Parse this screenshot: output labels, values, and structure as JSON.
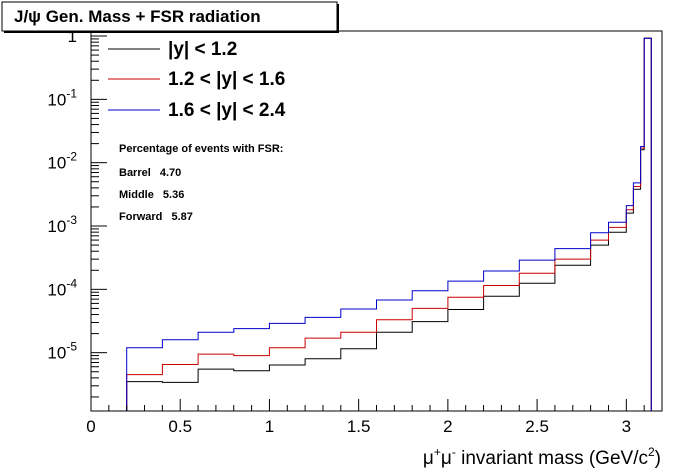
{
  "title": "J/ψ Gen. Mass + FSR radiation",
  "chart_data": {
    "type": "line",
    "title": "J/ψ Gen. Mass + FSR radiation",
    "xlabel": "μ⁺μ⁻ invariant mass (GeV/c²)",
    "xlabel_parts": {
      "mu1": "μ",
      "sup1": "+",
      "mu2": "μ",
      "sup2": "-",
      "rest": " invariant mass (GeV/c",
      "sup3": "2",
      "close": ")"
    },
    "ylabel": "",
    "xlim": [
      0,
      3.2
    ],
    "ylim": [
      1.2e-06,
      1.2
    ],
    "yscale": "log",
    "histogram": true,
    "grid": false,
    "legend_position": "top-left",
    "x_ticks": [
      "0",
      "0.5",
      "1",
      "1.5",
      "2",
      "2.5",
      "3"
    ],
    "y_ticks": [
      {
        "value": 1,
        "base": "1",
        "exp": ""
      },
      {
        "value": 0.1,
        "base": "10",
        "exp": "-1"
      },
      {
        "value": 0.01,
        "base": "10",
        "exp": "-2"
      },
      {
        "value": 0.001,
        "base": "10",
        "exp": "-3"
      },
      {
        "value": 0.0001,
        "base": "10",
        "exp": "-4"
      },
      {
        "value": 1e-05,
        "base": "10",
        "exp": "-5"
      }
    ],
    "x": [
      0.2,
      0.4,
      0.6,
      0.8,
      1.0,
      1.2,
      1.4,
      1.6,
      1.8,
      2.0,
      2.2,
      2.4,
      2.6,
      2.8,
      2.9,
      3.0,
      3.04,
      3.08,
      3.1
    ],
    "series": [
      {
        "name": "|y| < 1.2",
        "color": "#000000",
        "values": [
          3.5e-06,
          3.4e-06,
          5.5e-06,
          5.2e-06,
          6.4e-06,
          8e-06,
          1.15e-05,
          2.1e-05,
          3.1e-05,
          4.8e-05,
          7.8e-05,
          0.000125,
          0.00024,
          0.0005,
          0.0008,
          0.0016,
          0.0038,
          0.016,
          0.92
        ]
      },
      {
        "name": "1.2 < |y| < 1.6",
        "color": "#cc0000",
        "values": [
          4.5e-06,
          6.5e-06,
          9.5e-06,
          9e-06,
          1.2e-05,
          1.7e-05,
          2.1e-05,
          3.3e-05,
          5e-05,
          7.5e-05,
          0.000115,
          0.00018,
          0.0003,
          0.0006,
          0.00095,
          0.0018,
          0.0042,
          0.017,
          0.92
        ]
      },
      {
        "name": "1.6 < |y| < 2.4",
        "color": "#0000cc",
        "values": [
          1.2e-05,
          1.6e-05,
          2.1e-05,
          2.4e-05,
          2.9e-05,
          3.6e-05,
          4.9e-05,
          6.8e-05,
          9.5e-05,
          0.000135,
          0.000195,
          0.00029,
          0.00044,
          0.00078,
          0.00115,
          0.0021,
          0.0048,
          0.018,
          0.92
        ]
      }
    ],
    "legend": [
      "|y| < 1.2",
      "1.2 < |y| < 1.6",
      "1.6 < |y| < 2.4"
    ],
    "annotation": {
      "heading": "Percentage of events with FSR:",
      "rows": [
        {
          "label": "Barrel",
          "value": "4.70"
        },
        {
          "label": "Middle",
          "value": "5.36"
        },
        {
          "label": "Forward",
          "value": "5.87"
        }
      ]
    }
  }
}
